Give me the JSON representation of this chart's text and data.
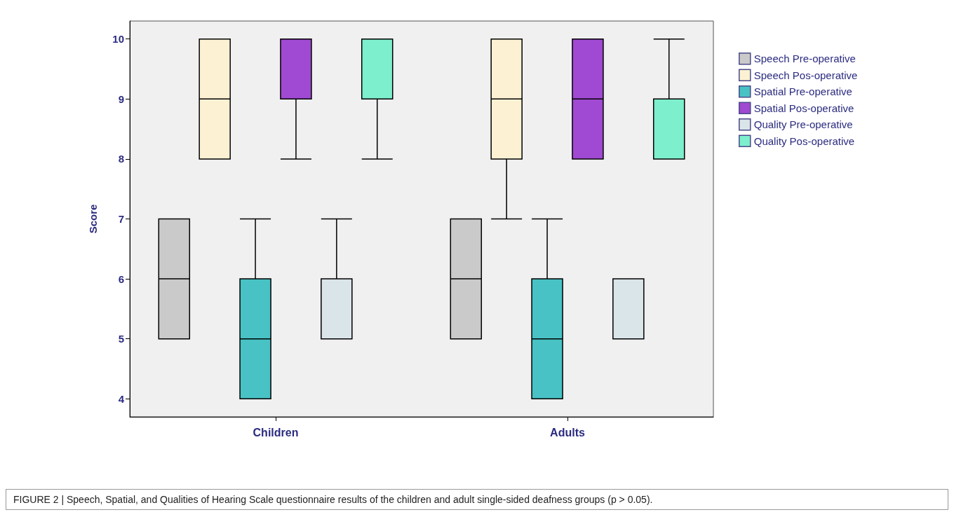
{
  "chart_data": {
    "type": "box",
    "ylabel": "Score",
    "categories": [
      "Children",
      "Adults"
    ],
    "ylim": [
      3.7,
      10.3
    ],
    "yticks": [
      4,
      5,
      6,
      7,
      8,
      9,
      10
    ],
    "grid": false,
    "legend": "right",
    "series": [
      {
        "name": "Speech Pre-operative",
        "color": "#cacaca",
        "boxes": [
          {
            "low": 5,
            "q1": 5,
            "median": 6,
            "q3": 7,
            "high": 7
          },
          {
            "low": 5,
            "q1": 5,
            "median": 6,
            "q3": 7,
            "high": 7
          }
        ]
      },
      {
        "name": "Speech Pos-operative",
        "color": "#fcf2d3",
        "boxes": [
          {
            "low": 8,
            "q1": 8,
            "median": 9,
            "q3": 10,
            "high": 10
          },
          {
            "low": 7,
            "q1": 8,
            "median": 9,
            "q3": 10,
            "high": 10
          }
        ]
      },
      {
        "name": "Spatial Pre-operative",
        "color": "#48c2c4",
        "boxes": [
          {
            "low": 4,
            "q1": 4,
            "median": 5,
            "q3": 6,
            "high": 7
          },
          {
            "low": 4,
            "q1": 4,
            "median": 5,
            "q3": 6,
            "high": 7
          }
        ]
      },
      {
        "name": "Spatial Pos-operative",
        "color": "#a049d2",
        "boxes": [
          {
            "low": 8,
            "q1": 9,
            "median": 9,
            "q3": 10,
            "high": 10
          },
          {
            "low": 8,
            "q1": 8,
            "median": 9,
            "q3": 10,
            "high": 10
          }
        ]
      },
      {
        "name": "Quality Pre-operative",
        "color": "#dae5ea",
        "boxes": [
          {
            "low": 5,
            "q1": 5,
            "median": 6,
            "q3": 6,
            "high": 7
          },
          {
            "low": 5,
            "q1": 5,
            "median": 6,
            "q3": 6,
            "high": 6
          }
        ]
      },
      {
        "name": "Quality Pos-operative",
        "color": "#7eefcd",
        "boxes": [
          {
            "low": 8,
            "q1": 9,
            "median": 9,
            "q3": 10,
            "high": 10
          },
          {
            "low": 8,
            "q1": 8,
            "median": 9,
            "q3": 9,
            "high": 10
          }
        ]
      }
    ],
    "annotations": [
      "FIGURE 2 | Speech, Spatial, and Qualities of Hearing Scale questionnaire results of the children and adult single-sided deafness groups (p > 0.05)."
    ]
  }
}
